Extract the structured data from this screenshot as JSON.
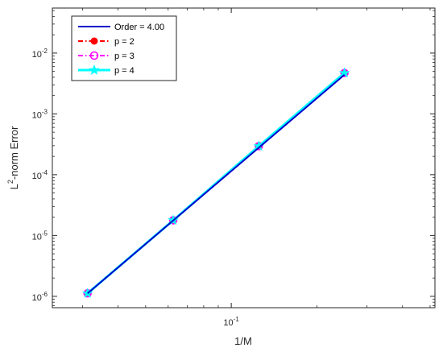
{
  "chart_data": {
    "type": "line",
    "xlabel": "1/M",
    "ylabel": "L²-norm Error",
    "ylabel_base": "L",
    "ylabel_sup": "2",
    "ylabel_rest": "-norm Error",
    "xscale": "log",
    "yscale": "log",
    "xlim": [
      0.0235,
      0.52
    ],
    "ylim": [
      6.5e-07,
      0.055
    ],
    "grid": false,
    "legend_position": "top-left",
    "x_ticks": [
      {
        "value": 0.1,
        "base": "10",
        "exp": "-1"
      }
    ],
    "y_ticks": [
      {
        "value": 1e-06,
        "base": "10",
        "exp": "-6"
      },
      {
        "value": 1e-05,
        "base": "10",
        "exp": "-5"
      },
      {
        "value": 0.0001,
        "base": "10",
        "exp": "-4"
      },
      {
        "value": 0.001,
        "base": "10",
        "exp": "-3"
      },
      {
        "value": 0.01,
        "base": "10",
        "exp": "-2"
      }
    ],
    "series": [
      {
        "name": "Order = 4.00",
        "color": "#0000cd",
        "dash": "solid",
        "marker": "none",
        "x": [
          0.03125,
          0.25
        ],
        "y": [
          1.12e-06,
          0.0044
        ]
      },
      {
        "name": "p = 2",
        "color": "#ff0000",
        "dash": "dashdot",
        "marker": "dot",
        "x": [
          0.03125,
          0.0625,
          0.125,
          0.25
        ],
        "y": [
          1.12e-06,
          1.78e-05,
          0.000295,
          0.0047
        ]
      },
      {
        "name": "p = 3",
        "color": "#ff00ff",
        "dash": "dashdot",
        "marker": "circle",
        "x": [
          0.03125,
          0.0625,
          0.125,
          0.25
        ],
        "y": [
          1.12e-06,
          1.78e-05,
          0.000295,
          0.0047
        ]
      },
      {
        "name": "p = 4",
        "color": "#00ffff",
        "dash": "solid",
        "marker": "star",
        "x": [
          0.03125,
          0.0625,
          0.125,
          0.25
        ],
        "y": [
          1.12e-06,
          1.78e-05,
          0.000295,
          0.0047
        ]
      }
    ]
  }
}
